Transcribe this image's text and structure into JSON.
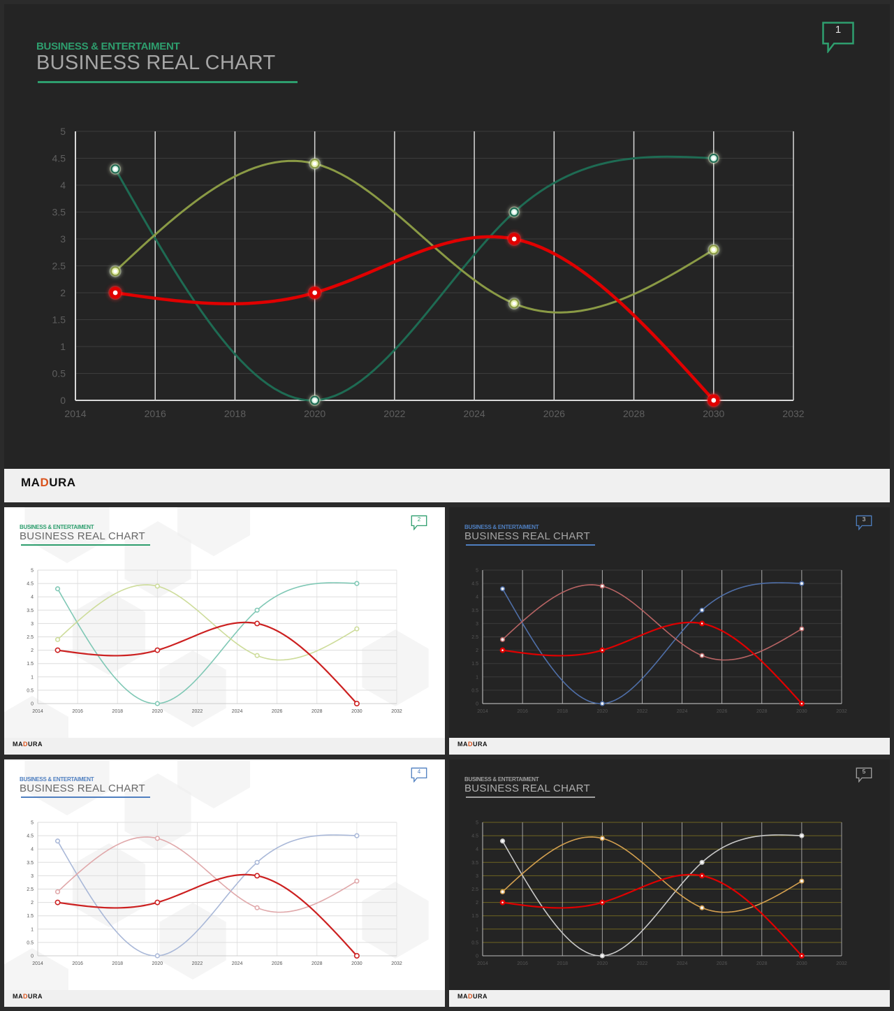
{
  "slides": [
    {
      "slide_number": "1",
      "subtitle": "BUSINESS & ENTERTAIMENT",
      "title": "BUSINESS REAL CHART",
      "brand": "MADURA",
      "theme": {
        "bg": "dark",
        "accent": "#2e9e6e",
        "title": "#a6a6a6",
        "grid_v": "#d8d8d8",
        "grid_h": "#3c3c3c",
        "axis": "#d8d8d8",
        "tick": "#5f5f5f",
        "badge": "#2e9e6e"
      },
      "series_colors": [
        "#1e6b53",
        "#8a9a45",
        "#e00000"
      ]
    },
    {
      "slide_number": "2",
      "subtitle": "BUSINESS & ENTERTAIMENT",
      "title": "BUSINESS REAL CHART",
      "brand": "MADURA",
      "theme": {
        "bg": "light",
        "accent": "#2e9e6e",
        "title": "#666666",
        "grid_v": "#dddddd",
        "grid_h": "#dddddd",
        "axis": "#cccccc",
        "tick": "#555555",
        "badge": "#2e9e6e"
      },
      "series_colors": [
        "#7fc8b5",
        "#cddc9a",
        "#cc2020"
      ]
    },
    {
      "slide_number": "3",
      "subtitle": "BUSINESS & ENTERTAIMENT",
      "title": "BUSINESS REAL CHART",
      "brand": "MADURA",
      "theme": {
        "bg": "dark",
        "accent": "#4f7fc0",
        "title": "#a6a6a6",
        "grid_v": "#cfcfcf",
        "grid_h": "#3a3a3a",
        "axis": "#cfcfcf",
        "tick": "#555555",
        "badge": "#4f7fc0"
      },
      "series_colors": [
        "#4f6fa8",
        "#b86464",
        "#e00000"
      ]
    },
    {
      "slide_number": "4",
      "subtitle": "BUSINESS & ENTERTAIMENT",
      "title": "BUSINESS REAL CHART",
      "brand": "MADURA",
      "theme": {
        "bg": "light",
        "accent": "#4f7fc0",
        "title": "#666666",
        "grid_v": "#dddddd",
        "grid_h": "#dddddd",
        "axis": "#cccccc",
        "tick": "#555555",
        "badge": "#4f7fc0"
      },
      "series_colors": [
        "#a9b8d8",
        "#e0a8aa",
        "#cc2020"
      ]
    },
    {
      "slide_number": "5",
      "subtitle": "BUSINESS & ENTERTAIMENT",
      "title": "BUSINESS REAL CHART",
      "brand": "MADURA",
      "theme": {
        "bg": "dark",
        "accent": "#a0a0a0",
        "title": "#b0b0b0",
        "grid_v": "#bdbdbd",
        "grid_h": "#6e6420",
        "axis": "#bdbdbd",
        "tick": "#555555",
        "badge": "#a0a0a0"
      },
      "series_colors": [
        "#c8c8c8",
        "#d4a050",
        "#e00000"
      ]
    }
  ],
  "chart_data": {
    "type": "line",
    "smooth": true,
    "x_ticks": [
      2014,
      2016,
      2018,
      2020,
      2022,
      2024,
      2026,
      2028,
      2030,
      2032
    ],
    "y_ticks": [
      "0",
      "0.5",
      "1",
      "1.5",
      "2",
      "2.5",
      "3",
      "3.5",
      "4",
      "4.5",
      "5"
    ],
    "xlim": [
      2014,
      2032
    ],
    "ylim": [
      0,
      5
    ],
    "x": [
      2015,
      2020,
      2025,
      2030
    ],
    "series": [
      {
        "values": [
          4.3,
          0,
          3.5,
          4.5
        ]
      },
      {
        "values": [
          2.4,
          4.4,
          1.8,
          2.8
        ]
      },
      {
        "values": [
          2,
          2,
          3,
          0
        ]
      }
    ],
    "grid": true
  }
}
